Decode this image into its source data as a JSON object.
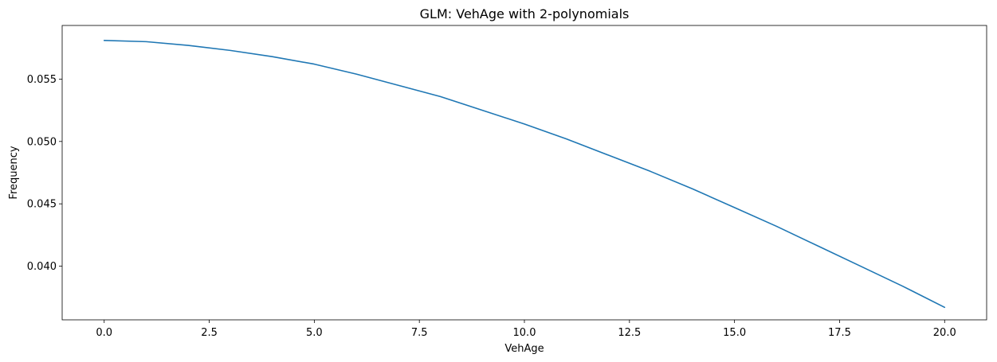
{
  "chart_data": {
    "type": "line",
    "title": "GLM: VehAge with 2-polynomials",
    "xlabel": "VehAge",
    "ylabel": "Frequency",
    "xlim": [
      -1.0,
      21.0
    ],
    "ylim": [
      0.0357,
      0.0593
    ],
    "xticks": [
      0.0,
      2.5,
      5.0,
      7.5,
      10.0,
      12.5,
      15.0,
      17.5,
      20.0
    ],
    "xtick_labels": [
      "0.0",
      "2.5",
      "5.0",
      "7.5",
      "10.0",
      "12.5",
      "15.0",
      "17.5",
      "20.0"
    ],
    "yticks": [
      0.04,
      0.045,
      0.05,
      0.055
    ],
    "ytick_labels": [
      "0.040",
      "0.045",
      "0.050",
      "0.055"
    ],
    "grid": false,
    "series": [
      {
        "color": "#1f77b4",
        "x": [
          0,
          1,
          2,
          3,
          4,
          5,
          6,
          7,
          8,
          9,
          10,
          11,
          12,
          13,
          14,
          15,
          16,
          17,
          18,
          19,
          20
        ],
        "y": [
          0.0581,
          0.058,
          0.0577,
          0.0573,
          0.0568,
          0.0562,
          0.0554,
          0.0545,
          0.0536,
          0.0525,
          0.0514,
          0.0502,
          0.0489,
          0.0476,
          0.0462,
          0.0447,
          0.0432,
          0.0416,
          0.04,
          0.0384,
          0.0367
        ]
      }
    ]
  }
}
